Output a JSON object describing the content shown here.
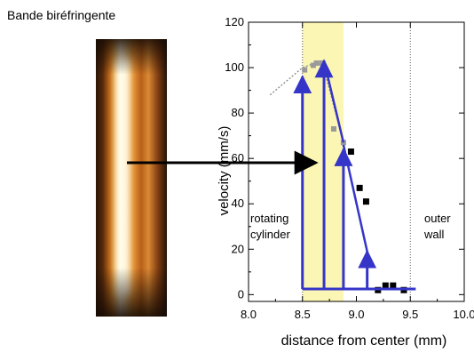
{
  "caption": "Bande biréfringente",
  "chart_data": {
    "type": "scatter",
    "xlabel": "distance from center (mm)",
    "ylabel": "velocity (mm/s)",
    "xlim": [
      8.0,
      10.0
    ],
    "ylim": [
      -3,
      120
    ],
    "x_ticks": [
      "8.0",
      "8.5",
      "9.0",
      "9.5",
      "10.0"
    ],
    "y_ticks": [
      "0",
      "20",
      "40",
      "60",
      "80",
      "100",
      "120"
    ],
    "region_labels": {
      "inner": [
        "rotating",
        "cylinder"
      ],
      "outer": [
        "outer",
        "wall"
      ]
    },
    "band_x": [
      8.5,
      8.88
    ],
    "boundary_lines_x": [
      8.5,
      9.5
    ],
    "dashed_fit_line": {
      "x": [
        8.2,
        8.5,
        8.68,
        8.88
      ],
      "y": [
        88,
        100,
        103,
        67
      ]
    },
    "grey_points": {
      "x": [
        8.52,
        8.6,
        8.63,
        8.68,
        8.79,
        8.88
      ],
      "y": [
        99,
        101,
        102,
        102,
        73,
        67
      ]
    },
    "black_points": {
      "x": [
        8.95,
        9.03,
        9.09,
        9.2,
        9.27,
        9.34,
        9.44
      ],
      "y": [
        63,
        47,
        41,
        2,
        4,
        4,
        2
      ]
    },
    "blue_bars": [
      {
        "x": 8.5,
        "y": 96
      },
      {
        "x": 8.7,
        "y": 103
      },
      {
        "x": 8.88,
        "y": 64
      },
      {
        "x": 9.1,
        "y": 19
      }
    ],
    "blue_diagonals": [
      {
        "x1": 8.7,
        "y1": 103,
        "x2": 8.88,
        "y2": 67
      },
      {
        "x1": 8.88,
        "y1": 66,
        "x2": 9.1,
        "y2": 19
      }
    ],
    "blue_baseline": {
      "x1": 8.5,
      "x2": 9.55,
      "y": 2.5
    },
    "colors": {
      "band": "#fbf6b4",
      "blue": "#3535c8",
      "grey_point": "#9a9a9a",
      "black_point": "#000000",
      "arrow": "#000000"
    }
  }
}
